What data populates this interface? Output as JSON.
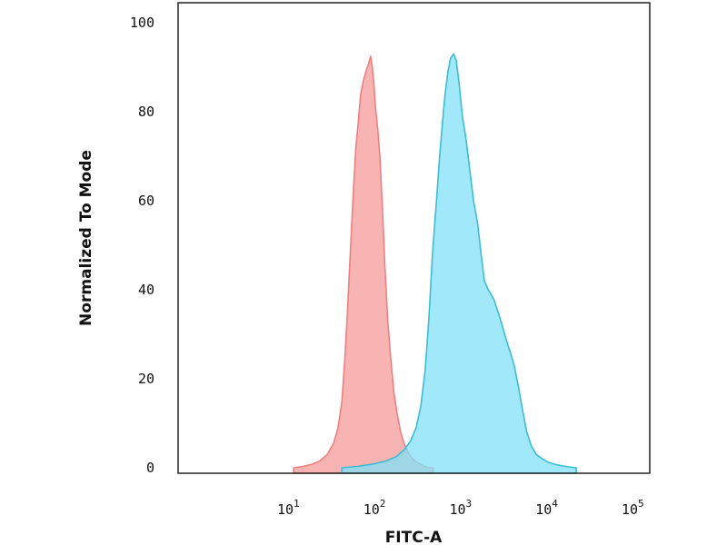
{
  "chart_data": {
    "type": "area",
    "xlabel": "FITC-A",
    "ylabel": "Normalized To Mode",
    "x_scale": "log",
    "xlim": [
      0.5,
      150000
    ],
    "ylim": [
      0,
      100
    ],
    "x_ticks": [
      {
        "value": 10,
        "base": "10",
        "exp": "1"
      },
      {
        "value": 100,
        "base": "10",
        "exp": "2"
      },
      {
        "value": 1000,
        "base": "10",
        "exp": "3"
      },
      {
        "value": 10000,
        "base": "10",
        "exp": "4"
      },
      {
        "value": 100000,
        "base": "10",
        "exp": "5"
      }
    ],
    "y_ticks": [
      {
        "value": 0,
        "label": "0"
      },
      {
        "value": 20,
        "label": "20"
      },
      {
        "value": 40,
        "label": "40"
      },
      {
        "value": 60,
        "label": "60"
      },
      {
        "value": 80,
        "label": "80"
      },
      {
        "value": 100,
        "label": "100"
      }
    ],
    "grid": false,
    "series": [
      {
        "color": "#f08080",
        "fill": "#f59a9a",
        "points": [
          [
            11,
            0
          ],
          [
            14,
            0.3
          ],
          [
            18,
            0.8
          ],
          [
            22,
            1.5
          ],
          [
            27,
            3
          ],
          [
            32,
            5.5
          ],
          [
            36,
            9
          ],
          [
            40,
            15
          ],
          [
            43,
            24
          ],
          [
            46,
            34
          ],
          [
            49,
            45
          ],
          [
            52,
            55
          ],
          [
            55,
            64
          ],
          [
            58,
            72
          ],
          [
            62,
            78
          ],
          [
            66,
            84
          ],
          [
            71,
            87
          ],
          [
            76,
            89
          ],
          [
            82,
            91
          ],
          [
            86,
            92.5
          ],
          [
            90,
            90
          ],
          [
            94,
            86
          ],
          [
            98,
            81
          ],
          [
            104,
            76
          ],
          [
            110,
            70
          ],
          [
            118,
            58
          ],
          [
            126,
            45
          ],
          [
            136,
            33
          ],
          [
            148,
            24
          ],
          [
            160,
            17
          ],
          [
            175,
            12
          ],
          [
            192,
            8
          ],
          [
            210,
            5.5
          ],
          [
            235,
            3.5
          ],
          [
            265,
            2
          ],
          [
            300,
            1.2
          ],
          [
            345,
            0.5
          ],
          [
            400,
            0.1
          ],
          [
            460,
            0
          ]
        ]
      },
      {
        "color": "#3cbcd6",
        "fill": "#82e2f8",
        "points": [
          [
            40,
            0
          ],
          [
            60,
            0.3
          ],
          [
            90,
            0.8
          ],
          [
            130,
            1.5
          ],
          [
            170,
            2.5
          ],
          [
            210,
            4
          ],
          [
            250,
            6
          ],
          [
            290,
            9
          ],
          [
            330,
            14
          ],
          [
            370,
            22
          ],
          [
            410,
            34
          ],
          [
            450,
            48
          ],
          [
            500,
            60
          ],
          [
            545,
            70
          ],
          [
            590,
            78
          ],
          [
            630,
            84
          ],
          [
            680,
            89
          ],
          [
            730,
            92
          ],
          [
            790,
            93
          ],
          [
            850,
            91.5
          ],
          [
            920,
            86
          ],
          [
            1000,
            79
          ],
          [
            1100,
            74
          ],
          [
            1200,
            68
          ],
          [
            1350,
            60
          ],
          [
            1500,
            55
          ],
          [
            1650,
            48
          ],
          [
            1800,
            42
          ],
          [
            2000,
            40
          ],
          [
            2300,
            38
          ],
          [
            2600,
            35
          ],
          [
            2900,
            32
          ],
          [
            3200,
            29
          ],
          [
            3600,
            26
          ],
          [
            4000,
            23
          ],
          [
            4500,
            18
          ],
          [
            5000,
            13
          ],
          [
            5600,
            8
          ],
          [
            6300,
            5
          ],
          [
            7200,
            3
          ],
          [
            8500,
            2
          ],
          [
            10000,
            1.2
          ],
          [
            13000,
            0.6
          ],
          [
            17000,
            0.2
          ],
          [
            21000,
            0
          ]
        ]
      }
    ]
  }
}
